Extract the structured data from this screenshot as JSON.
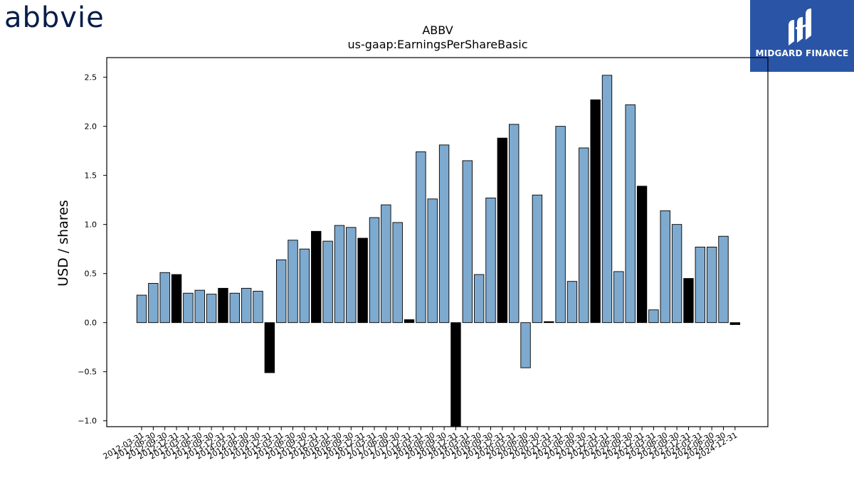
{
  "header": {
    "left_logo_text": "abbvie",
    "right_logo_text": "MIDGARD FINANCE"
  },
  "colors": {
    "bar_positive_default": "#7eaacf",
    "bar_highlight": "#000000",
    "logo_left": "#071d49",
    "logo_right_bg": "#2a55a6"
  },
  "chart_data": {
    "type": "bar",
    "title": "ABBV",
    "subtitle": "us-gaap:EarningsPerShareBasic",
    "ylabel": "USD / shares",
    "xlabel": "",
    "ylim": [
      -1.06,
      2.7
    ],
    "yticks": [
      -1.0,
      -0.5,
      0.0,
      0.5,
      1.0,
      1.5,
      2.0,
      2.5
    ],
    "ytick_labels": [
      "−1.0",
      "−0.5",
      "0.0",
      "0.5",
      "1.0",
      "1.5",
      "2.0",
      "2.5"
    ],
    "grid": false,
    "legend": "none",
    "categories": [
      "2012-03-31",
      "2012-06-30",
      "2012-09-30",
      "2012-12-31",
      "2013-03-31",
      "2013-06-30",
      "2013-09-30",
      "2013-12-31",
      "2014-03-31",
      "2014-06-30",
      "2014-09-30",
      "2014-12-31",
      "2015-03-31",
      "2015-06-30",
      "2015-09-30",
      "2015-12-31",
      "2016-03-31",
      "2016-06-30",
      "2016-09-30",
      "2016-12-31",
      "2017-03-31",
      "2017-06-30",
      "2017-09-30",
      "2017-12-31",
      "2018-03-31",
      "2018-06-30",
      "2018-09-30",
      "2018-12-31",
      "2019-03-31",
      "2019-06-30",
      "2019-09-30",
      "2019-12-31",
      "2020-03-31",
      "2020-06-30",
      "2020-09-30",
      "2020-12-31",
      "2021-03-31",
      "2021-06-30",
      "2021-09-30",
      "2021-12-31",
      "2022-03-31",
      "2022-06-30",
      "2022-09-30",
      "2022-12-31",
      "2023-03-31",
      "2023-06-30",
      "2023-09-30",
      "2023-12-31",
      "2024-03-31",
      "2024-06-30",
      "2024-09-30",
      "2024-12-31"
    ],
    "values": [
      0.28,
      0.4,
      0.51,
      0.49,
      0.3,
      0.33,
      0.29,
      0.35,
      0.3,
      0.35,
      0.32,
      -0.51,
      0.64,
      0.84,
      0.75,
      0.93,
      0.83,
      0.99,
      0.97,
      0.86,
      1.07,
      1.2,
      1.02,
      0.03,
      1.74,
      1.26,
      1.81,
      -1.06,
      1.65,
      0.49,
      1.27,
      1.88,
      2.02,
      -0.46,
      1.3,
      0.01,
      2.0,
      0.42,
      1.78,
      2.27,
      2.52,
      0.52,
      2.22,
      1.39,
      0.13,
      1.14,
      1.0,
      0.45,
      0.77,
      0.77,
      0.88,
      -0.02
    ],
    "highlight": [
      false,
      false,
      false,
      true,
      false,
      false,
      false,
      true,
      false,
      false,
      false,
      true,
      false,
      false,
      false,
      true,
      false,
      false,
      false,
      true,
      false,
      false,
      false,
      true,
      false,
      false,
      false,
      true,
      false,
      false,
      false,
      true,
      false,
      false,
      false,
      true,
      false,
      false,
      false,
      true,
      false,
      false,
      false,
      true,
      false,
      false,
      false,
      true,
      false,
      false,
      false,
      true
    ]
  }
}
